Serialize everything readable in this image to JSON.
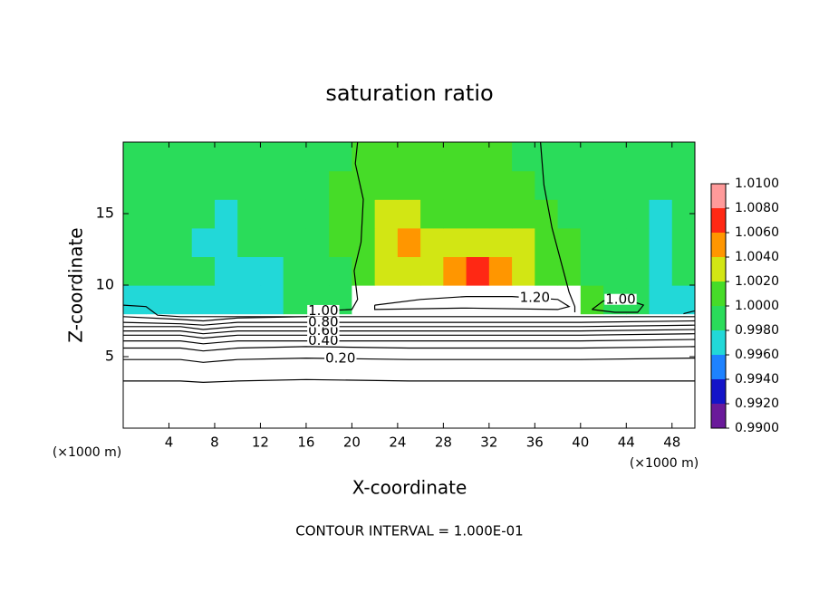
{
  "chart_data": {
    "type": "contour",
    "title": "saturation ratio",
    "xlabel": "X-coordinate",
    "ylabel": "Z-coordinate",
    "xunit": "(×1000 m)",
    "footer": "CONTOUR INTERVAL = 1.000E-01",
    "xlim": [
      0,
      50
    ],
    "ylim": [
      0,
      20
    ],
    "xticks": [
      4,
      8,
      12,
      16,
      20,
      24,
      28,
      32,
      36,
      40,
      44,
      48
    ],
    "yticks": [
      5,
      10,
      15
    ],
    "colorbar": {
      "levels": [
        {
          "value": 0.99,
          "label": "0.9900"
        },
        {
          "value": 0.992,
          "label": "0.9920"
        },
        {
          "value": 0.994,
          "label": "0.9940"
        },
        {
          "value": 0.996,
          "label": "0.9960"
        },
        {
          "value": 0.998,
          "label": "0.9980"
        },
        {
          "value": 1.0,
          "label": "1.0000"
        },
        {
          "value": 1.002,
          "label": "1.0020"
        },
        {
          "value": 1.004,
          "label": "1.0040"
        },
        {
          "value": 1.006,
          "label": "1.0060"
        },
        {
          "value": 1.008,
          "label": "1.0080"
        },
        {
          "value": 1.01,
          "label": "1.0100"
        }
      ],
      "colors": [
        "#6a1a9a",
        "#1414c8",
        "#1e82ff",
        "#22d8d8",
        "#2adc5a",
        "#46dc28",
        "#d2e614",
        "#ff9600",
        "#ff2814",
        "#ff9a9a"
      ]
    },
    "field": {
      "x": [
        1,
        3,
        5,
        7,
        9,
        11,
        13,
        15,
        17,
        19,
        21,
        23,
        25,
        27,
        29,
        31,
        33,
        35,
        37,
        39,
        41,
        43,
        45,
        47,
        49
      ],
      "z": [
        1,
        3,
        5,
        7,
        9,
        11,
        13,
        15,
        17,
        19
      ],
      "values": [
        [
          0.05,
          0.05,
          0.05,
          0.05,
          0.05,
          0.05,
          0.05,
          0.05,
          0.05,
          0.05,
          0.05,
          0.05,
          0.05,
          0.05,
          0.05,
          0.05,
          0.05,
          0.05,
          0.05,
          0.05,
          0.05,
          0.05,
          0.05,
          0.05,
          0.05
        ],
        [
          0.1,
          0.1,
          0.1,
          0.1,
          0.1,
          0.1,
          0.1,
          0.1,
          0.1,
          0.1,
          0.1,
          0.1,
          0.1,
          0.1,
          0.1,
          0.1,
          0.1,
          0.1,
          0.1,
          0.1,
          0.1,
          0.1,
          0.1,
          0.1,
          0.1
        ],
        [
          0.2,
          0.2,
          0.2,
          0.2,
          0.2,
          0.2,
          0.2,
          0.2,
          0.2,
          0.2,
          0.2,
          0.2,
          0.2,
          0.2,
          0.2,
          0.2,
          0.2,
          0.2,
          0.2,
          0.2,
          0.2,
          0.2,
          0.2,
          0.2,
          0.2
        ],
        [
          0.85,
          0.85,
          0.85,
          0.85,
          0.85,
          0.85,
          0.85,
          0.85,
          0.85,
          0.85,
          0.85,
          0.85,
          0.85,
          0.85,
          0.85,
          0.85,
          0.85,
          0.85,
          0.85,
          0.85,
          0.85,
          0.85,
          0.85,
          0.85,
          0.85
        ],
        [
          0.9975,
          0.997,
          0.998,
          0.997,
          0.998,
          0.9975,
          0.998,
          0.999,
          0.999,
          0.9995,
          1.2,
          1.2,
          1.2,
          1.2,
          1.2,
          1.2,
          1.2,
          1.2,
          1.2,
          1.2,
          1.001,
          1.0,
          0.999,
          0.998,
          0.997
        ],
        [
          0.999,
          0.999,
          0.999,
          0.999,
          0.998,
          0.997,
          0.998,
          0.999,
          0.9995,
          1.0,
          1.001,
          1.003,
          1.004,
          1.003,
          1.005,
          1.007,
          1.006,
          1.004,
          1.002,
          1.0005,
          1.0,
          0.9995,
          0.999,
          0.998,
          0.999
        ],
        [
          0.9995,
          0.999,
          0.999,
          0.998,
          0.997,
          0.999,
          0.9995,
          1.0,
          1.0,
          1.001,
          1.002,
          1.004,
          1.005,
          1.004,
          1.004,
          1.003,
          1.004,
          1.003,
          1.002,
          1.0005,
          0.9995,
          0.999,
          0.999,
          0.998,
          0.999
        ],
        [
          0.9995,
          0.999,
          0.999,
          0.9985,
          0.9975,
          0.999,
          0.9995,
          1.0,
          1.0,
          1.001,
          1.002,
          1.004,
          1.003,
          1.002,
          1.002,
          1.002,
          1.001,
          1.001,
          1.0005,
          1.0,
          0.9995,
          0.999,
          0.999,
          0.998,
          0.9995
        ],
        [
          1.0,
          0.9995,
          0.9995,
          0.999,
          0.999,
          0.9995,
          1.0,
          1.0,
          1.0,
          1.0005,
          1.001,
          1.002,
          1.002,
          1.0015,
          1.001,
          1.001,
          1.001,
          1.0005,
          1.0,
          1.0,
          0.9995,
          0.999,
          0.999,
          0.999,
          0.9995
        ],
        [
          1.0,
          1.0,
          1.0,
          0.9995,
          0.9995,
          1.0,
          1.0,
          1.0,
          1.0,
          1.0,
          1.0005,
          1.001,
          1.001,
          1.001,
          1.001,
          1.0005,
          1.0005,
          1.0,
          1.0,
          1.0,
          1.0,
          0.9995,
          0.9995,
          0.9995,
          1.0
        ]
      ]
    },
    "contours": [
      {
        "level": 0.1,
        "x": [
          0,
          5,
          7,
          10,
          16,
          25,
          40,
          50
        ],
        "y": [
          3.3,
          3.3,
          3.2,
          3.3,
          3.4,
          3.3,
          3.3,
          3.3
        ]
      },
      {
        "level": {
          "value": 0.2,
          "label": "0.20"
        },
        "x": [
          0,
          5,
          7,
          10,
          16,
          25,
          40,
          50
        ],
        "y": [
          4.8,
          4.8,
          4.6,
          4.8,
          4.9,
          4.8,
          4.8,
          4.9
        ]
      },
      {
        "level": 0.3,
        "x": [
          0,
          5,
          7,
          10,
          16,
          25,
          40,
          50
        ],
        "y": [
          5.6,
          5.6,
          5.4,
          5.6,
          5.7,
          5.6,
          5.6,
          5.7
        ]
      },
      {
        "level": {
          "value": 0.4,
          "label": "0.40"
        },
        "x": [
          0,
          5,
          7,
          10,
          16,
          25,
          40,
          50
        ],
        "y": [
          6.1,
          6.1,
          5.9,
          6.1,
          6.1,
          6.1,
          6.1,
          6.2
        ]
      },
      {
        "level": 0.5,
        "x": [
          0,
          5,
          7,
          10,
          16,
          25,
          40,
          50
        ],
        "y": [
          6.5,
          6.5,
          6.3,
          6.5,
          6.5,
          6.5,
          6.5,
          6.6
        ]
      },
      {
        "level": {
          "value": 0.6,
          "label": "0.60"
        },
        "x": [
          0,
          5,
          7,
          10,
          16,
          25,
          40,
          50
        ],
        "y": [
          6.8,
          6.8,
          6.6,
          6.8,
          6.8,
          6.8,
          6.8,
          6.9
        ]
      },
      {
        "level": 0.7,
        "x": [
          0,
          5,
          7,
          10,
          16,
          25,
          40,
          50
        ],
        "y": [
          7.1,
          7.1,
          6.9,
          7.1,
          7.1,
          7.1,
          7.1,
          7.2
        ]
      },
      {
        "level": {
          "value": 0.8,
          "label": "0.80"
        },
        "x": [
          0,
          5,
          7,
          10,
          16,
          25,
          40,
          50
        ],
        "y": [
          7.4,
          7.3,
          7.2,
          7.4,
          7.4,
          7.4,
          7.4,
          7.5
        ]
      },
      {
        "level": 0.9,
        "x": [
          0,
          5,
          7,
          10,
          16,
          25,
          40,
          50
        ],
        "y": [
          7.8,
          7.6,
          7.5,
          7.7,
          7.8,
          7.8,
          7.8,
          7.8
        ]
      },
      {
        "level": {
          "value": 1.0,
          "label": "1.00"
        },
        "x": [
          0,
          2,
          3,
          5,
          10,
          16,
          17.5,
          null,
          20.5,
          20.3,
          21,
          20.8,
          20.2,
          20.5,
          20,
          17.5,
          null,
          36.5,
          36.8,
          37.5,
          38.5,
          39,
          39.5,
          39.5,
          null,
          41,
          42,
          44,
          45.5,
          45,
          43,
          41,
          null,
          49,
          50
        ],
        "y": [
          8.6,
          8.5,
          7.9,
          7.8,
          7.8,
          7.8,
          8.2,
          null,
          20,
          18.5,
          16,
          13,
          11,
          9,
          8.3,
          8.2,
          null,
          20,
          17,
          14,
          11,
          9.5,
          8.5,
          8.1,
          null,
          8.3,
          8.9,
          9.0,
          8.6,
          8.1,
          8.1,
          8.3,
          null,
          8.0,
          8.2
        ]
      },
      {
        "level": {
          "value": 1.2,
          "label": "1.20"
        },
        "x": [
          22,
          26,
          30,
          34,
          38,
          39,
          38,
          30,
          22,
          22
        ],
        "y": [
          8.6,
          9.0,
          9.2,
          9.2,
          9.0,
          8.5,
          8.3,
          8.4,
          8.3,
          8.6
        ]
      }
    ]
  }
}
